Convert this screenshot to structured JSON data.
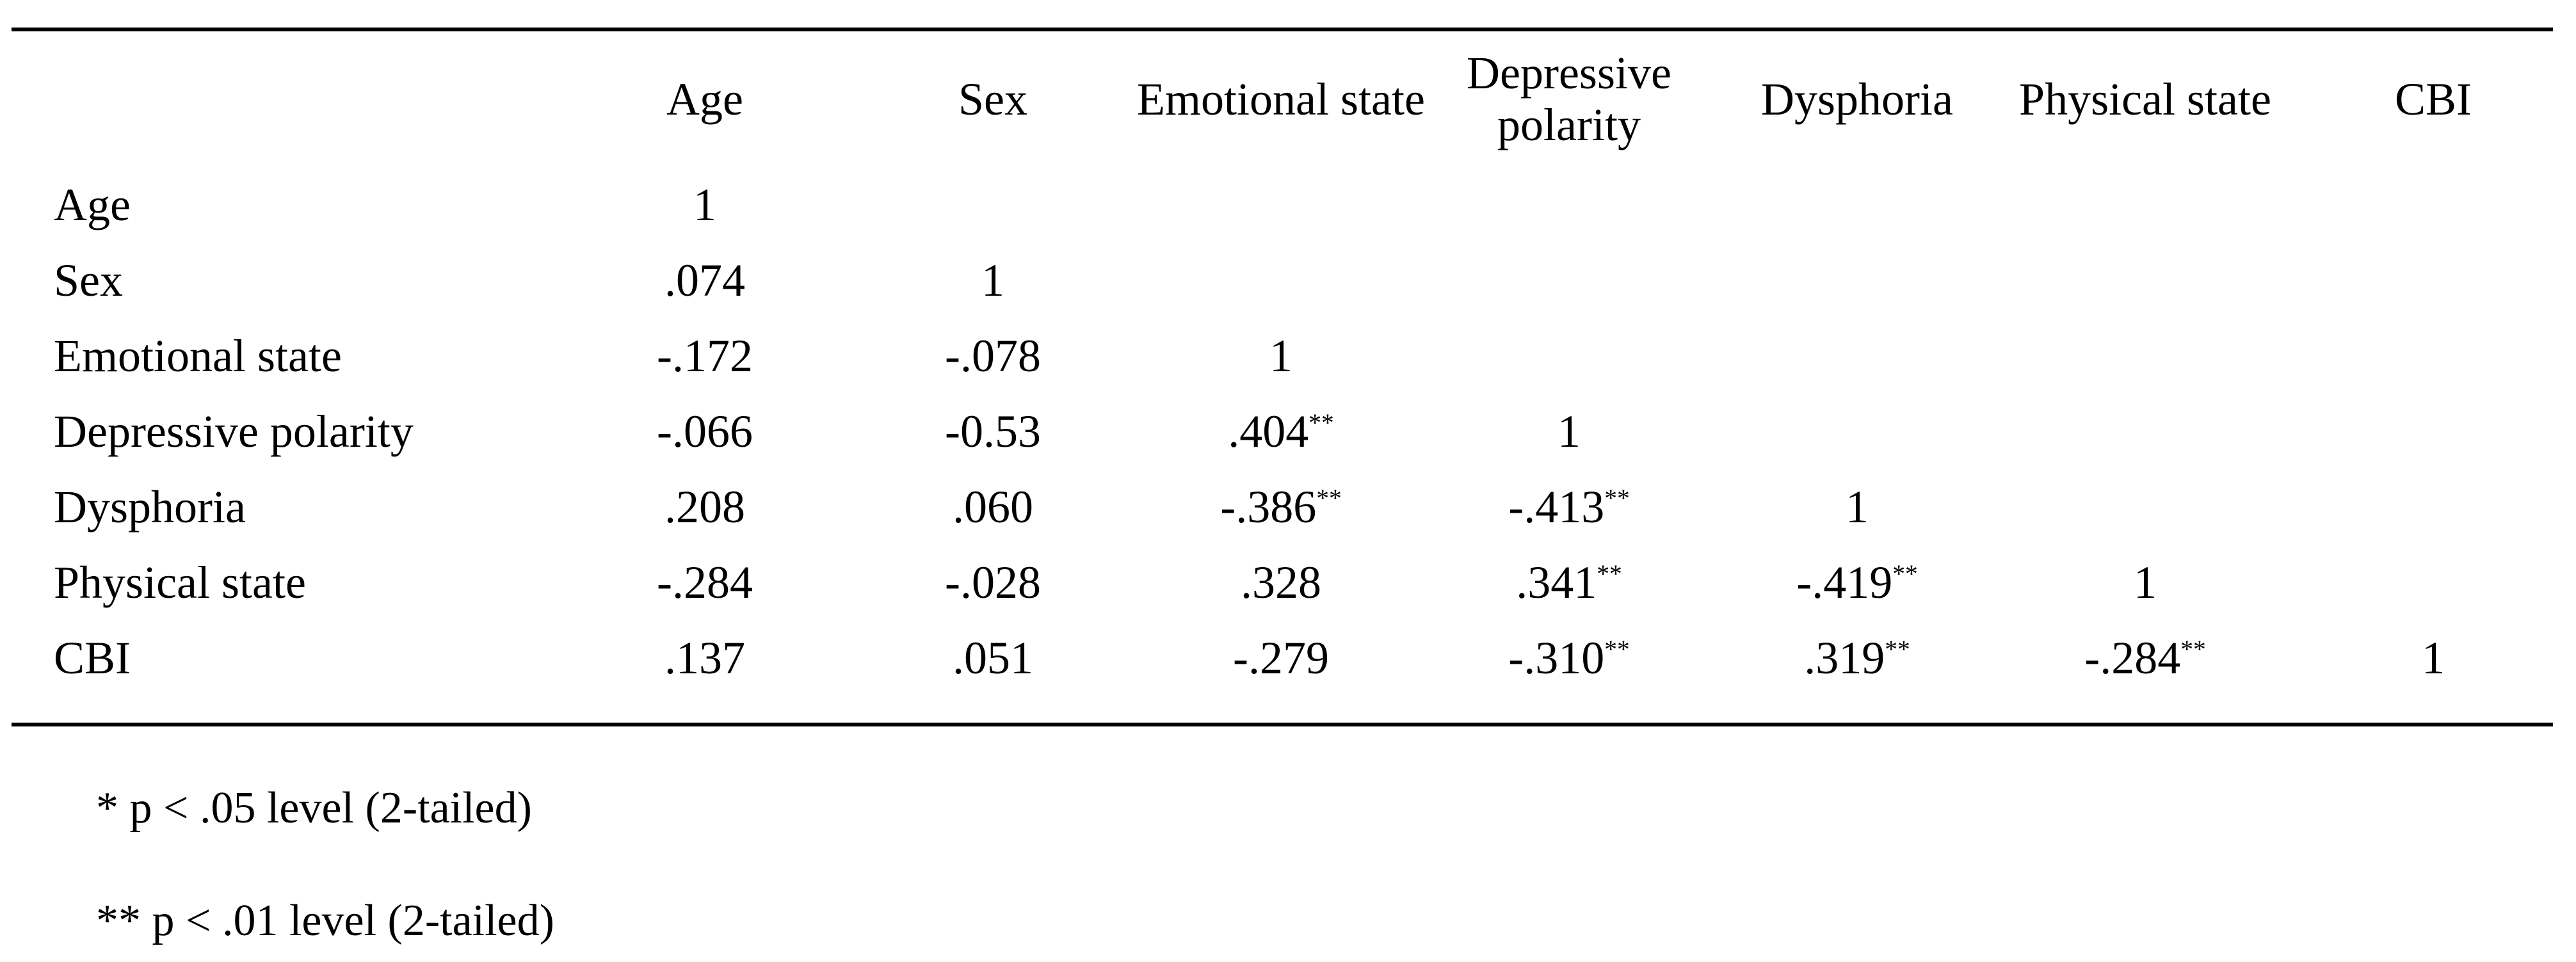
{
  "table": {
    "corner_label": "",
    "columns": [
      "Age",
      "Sex",
      "Emotional state",
      "Depressive polarity",
      "Dysphoria",
      "Physical state",
      "CBI"
    ],
    "rows": [
      {
        "label": "Age",
        "values": [
          "1",
          "",
          "",
          "",
          "",
          "",
          ""
        ]
      },
      {
        "label": "Sex",
        "values": [
          ".074",
          "1",
          "",
          "",
          "",
          "",
          ""
        ]
      },
      {
        "label": "Emotional state",
        "values": [
          "-.172",
          "-.078",
          "1",
          "",
          "",
          "",
          ""
        ]
      },
      {
        "label": "Depressive polarity",
        "values": [
          "-.066",
          "-0.53",
          ".404**",
          "1",
          "",
          "",
          ""
        ]
      },
      {
        "label": "Dysphoria",
        "values": [
          ".208",
          ".060",
          "-.386**",
          "-.413**",
          "1",
          "",
          ""
        ]
      },
      {
        "label": "Physical state",
        "values": [
          "-.284",
          "-.028",
          ".328",
          ".341**",
          "-.419**",
          "1",
          ""
        ]
      },
      {
        "label": "CBI",
        "values": [
          ".137",
          ".051",
          "-.279",
          "-.310**",
          ".319**",
          "-.284**",
          "1"
        ]
      }
    ]
  },
  "footnotes": [
    "* p < .05 level (2-tailed)",
    "** p < .01 level (2-tailed)"
  ],
  "colors": {
    "text": "#000000",
    "background": "#ffffff",
    "rule": "#000000"
  },
  "chart_data": {
    "type": "table",
    "title": "",
    "columns": [
      "Age",
      "Sex",
      "Emotional state",
      "Depressive polarity",
      "Dysphoria",
      "Physical state",
      "CBI"
    ],
    "row_labels": [
      "Age",
      "Sex",
      "Emotional state",
      "Depressive polarity",
      "Dysphoria",
      "Physical state",
      "CBI"
    ],
    "matrix": [
      [
        "1",
        null,
        null,
        null,
        null,
        null,
        null
      ],
      [
        ".074",
        "1",
        null,
        null,
        null,
        null,
        null
      ],
      [
        "-.172",
        "-.078",
        "1",
        null,
        null,
        null,
        null
      ],
      [
        "-.066",
        "-0.53",
        ".404**",
        "1",
        null,
        null,
        null
      ],
      [
        ".208",
        ".060",
        "-.386**",
        "-.413**",
        "1",
        null,
        null
      ],
      [
        "-.284",
        "-.028",
        ".328",
        ".341**",
        "-.419**",
        "1",
        null
      ],
      [
        ".137",
        ".051",
        "-.279",
        "-.310**",
        ".319**",
        "-.284**",
        "1"
      ]
    ],
    "notes": [
      "* p < .05 level (2-tailed)",
      "** p < .01 level (2-tailed)"
    ]
  }
}
